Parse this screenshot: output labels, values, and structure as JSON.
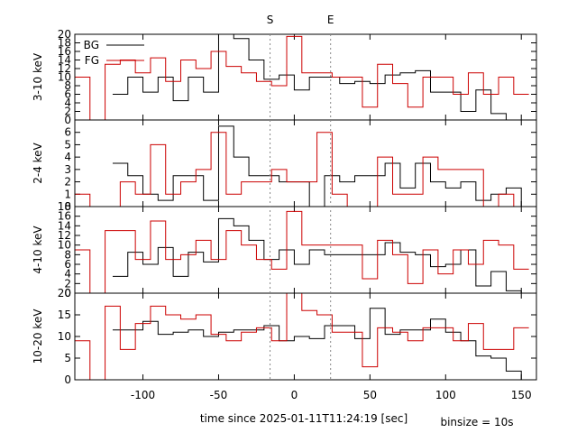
{
  "chart_data": {
    "type": "line",
    "step": true,
    "xlabel": "time since 2025-01-11T11:24:19 [sec]",
    "note": "binsize = 10s",
    "xlim": [
      -145,
      160
    ],
    "xticks": [
      -100,
      -50,
      0,
      50,
      100,
      150
    ],
    "xtick_labels": [
      "-100",
      "-50",
      "0",
      "50",
      "100",
      "150"
    ],
    "markers": [
      {
        "label": "S",
        "x": -16
      },
      {
        "label": "E",
        "x": 24
      }
    ],
    "legend": {
      "position": "top-left",
      "entries": [
        {
          "name": "BG",
          "color": "#000000"
        },
        {
          "name": "FG",
          "color": "#cc0000"
        }
      ]
    },
    "panels": [
      {
        "ylabel": "3-10 keV",
        "ylim": [
          0,
          20
        ],
        "yticks": [
          0,
          2,
          4,
          6,
          8,
          10,
          12,
          14,
          16,
          18,
          20
        ],
        "series": [
          {
            "name": "BG",
            "color": "#000000",
            "x": [
              -120,
              -110,
              -100,
              -90,
              -80,
              -70,
              -60,
              -50,
              -40,
              -30,
              -20,
              -10,
              0,
              10,
              20,
              30,
              40,
              50,
              60,
              70,
              80,
              90,
              100,
              110,
              120,
              130,
              140,
              150
            ],
            "values": [
              6,
              10,
              6.5,
              10,
              4.5,
              10,
              6.5,
              20,
              19,
              14,
              9.5,
              10.5,
              7,
              10,
              10,
              8.5,
              9,
              8.5,
              10.5,
              11,
              11.5,
              6.5,
              6.5,
              2,
              7,
              1.5,
              0,
              0
            ]
          },
          {
            "name": "FG",
            "color": "#cc0000",
            "x": [
              -145,
              -135,
              -125,
              -115,
              -105,
              -95,
              -85,
              -75,
              -65,
              -55,
              -45,
              -35,
              -25,
              -15,
              -5,
              5,
              15,
              25,
              35,
              45,
              55,
              65,
              75,
              85,
              95,
              105,
              115,
              125,
              135,
              145
            ],
            "values": [
              10,
              0,
              13,
              14,
              11,
              14.5,
              9,
              14,
              12,
              16,
              12.5,
              11,
              9,
              8,
              19.5,
              11,
              11,
              10,
              10,
              3,
              13,
              8.5,
              3,
              10,
              10,
              6,
              11,
              6,
              10,
              6
            ]
          }
        ]
      },
      {
        "ylabel": "2-4 keV",
        "ylim": [
          0,
          7
        ],
        "yticks": [
          0,
          1,
          2,
          3,
          4,
          5,
          6
        ],
        "series": [
          {
            "name": "BG",
            "color": "#000000",
            "x": [
              -120,
              -110,
              -100,
              -90,
              -80,
              -70,
              -60,
              -50,
              -40,
              -30,
              -20,
              -10,
              0,
              10,
              20,
              30,
              40,
              50,
              60,
              70,
              80,
              90,
              100,
              110,
              120,
              130,
              140,
              150
            ],
            "values": [
              3.5,
              2.5,
              1,
              0.5,
              2.5,
              2.5,
              0.5,
              6.5,
              4,
              2.5,
              2.5,
              2,
              2,
              0,
              2.5,
              2,
              2.5,
              2.5,
              3.5,
              1.5,
              3.5,
              2,
              1.5,
              2,
              0.5,
              1,
              1.5,
              0
            ]
          },
          {
            "name": "FG",
            "color": "#cc0000",
            "x": [
              -145,
              -135,
              -125,
              -115,
              -105,
              -95,
              -85,
              -75,
              -65,
              -55,
              -45,
              -35,
              -25,
              -15,
              -5,
              5,
              15,
              25,
              35,
              45,
              55,
              65,
              75,
              85,
              95,
              105,
              115,
              125,
              135,
              145
            ],
            "values": [
              1,
              0,
              0,
              2,
              1,
              5,
              1,
              2,
              3,
              6,
              1,
              2,
              2,
              3,
              2,
              2,
              6,
              1,
              0,
              0,
              4,
              1,
              1,
              4,
              3,
              3,
              3,
              0,
              1,
              0
            ]
          }
        ]
      },
      {
        "ylabel": "4-10 keV",
        "ylim": [
          0,
          18
        ],
        "yticks": [
          0,
          2,
          4,
          6,
          8,
          10,
          12,
          14,
          16,
          18
        ],
        "series": [
          {
            "name": "BG",
            "color": "#000000",
            "x": [
              -120,
              -110,
              -100,
              -90,
              -80,
              -70,
              -60,
              -50,
              -40,
              -30,
              -20,
              -10,
              0,
              10,
              20,
              30,
              40,
              50,
              60,
              70,
              80,
              90,
              100,
              110,
              120,
              130,
              140,
              150
            ],
            "values": [
              3.5,
              8.5,
              6,
              9.5,
              3.5,
              8.5,
              6.5,
              15.5,
              14,
              11,
              7,
              9,
              6,
              9,
              8,
              8,
              8,
              8,
              10.5,
              8.5,
              8,
              5.5,
              6,
              9,
              1.5,
              4.5,
              0.5,
              0
            ]
          },
          {
            "name": "FG",
            "color": "#cc0000",
            "x": [
              -145,
              -135,
              -125,
              -115,
              -105,
              -95,
              -85,
              -75,
              -65,
              -55,
              -45,
              -35,
              -25,
              -15,
              -5,
              5,
              15,
              25,
              35,
              45,
              55,
              65,
              75,
              85,
              95,
              105,
              115,
              125,
              135,
              145
            ],
            "values": [
              9,
              0,
              13,
              13,
              7,
              15,
              7,
              8,
              11,
              7,
              13,
              10,
              7,
              5,
              17,
              10,
              10,
              10,
              10,
              3,
              11,
              8,
              2,
              9,
              4,
              9,
              6,
              11,
              10,
              5
            ]
          }
        ]
      },
      {
        "ylabel": "10-20 keV",
        "ylim": [
          0,
          20
        ],
        "yticks": [
          0,
          5,
          10,
          15,
          20
        ],
        "series": [
          {
            "name": "BG",
            "color": "#000000",
            "x": [
              -120,
              -110,
              -100,
              -90,
              -80,
              -70,
              -60,
              -50,
              -40,
              -30,
              -20,
              -10,
              0,
              10,
              20,
              30,
              40,
              50,
              60,
              70,
              80,
              90,
              100,
              110,
              120,
              130,
              140,
              150
            ],
            "values": [
              11.5,
              11.5,
              13.5,
              10.5,
              11,
              11.5,
              10,
              11,
              11.5,
              11.5,
              12.5,
              9,
              10,
              9.5,
              12.5,
              12.5,
              9.5,
              16.5,
              10.5,
              11.5,
              11.5,
              14,
              11,
              9,
              5.5,
              5,
              2,
              0
            ]
          },
          {
            "name": "FG",
            "color": "#cc0000",
            "x": [
              -145,
              -135,
              -125,
              -115,
              -105,
              -95,
              -85,
              -75,
              -65,
              -55,
              -45,
              -35,
              -25,
              -15,
              -5,
              5,
              15,
              25,
              35,
              45,
              55,
              65,
              75,
              85,
              95,
              105,
              115,
              125,
              135,
              145
            ],
            "values": [
              9,
              0,
              17,
              7,
              13,
              17,
              15,
              14,
              15,
              10.5,
              9,
              11,
              12,
              9,
              20,
              16,
              15,
              11,
              11,
              3,
              12,
              11,
              9,
              12,
              12,
              9,
              13,
              7,
              7,
              12
            ]
          }
        ]
      }
    ]
  }
}
